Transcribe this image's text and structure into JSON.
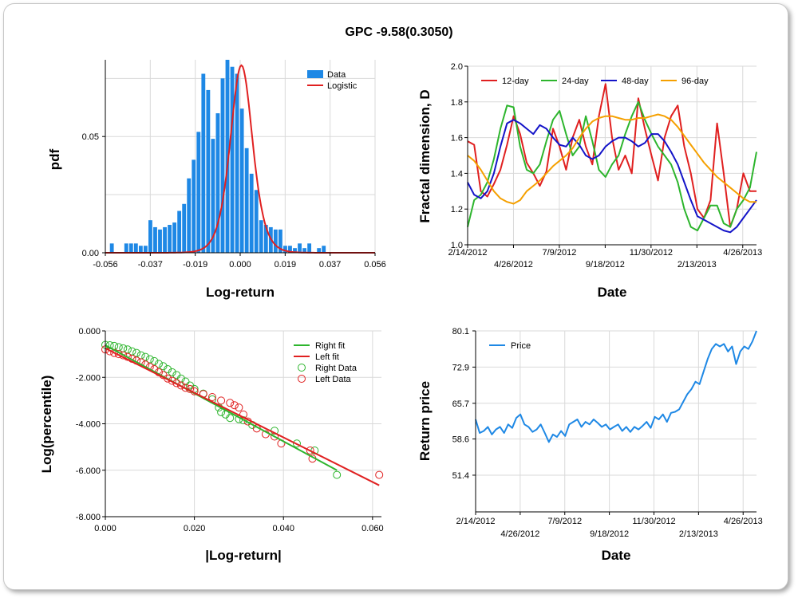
{
  "title": "GPC -9.58(0.3050)",
  "chart_data": [
    {
      "id": "histogram",
      "type": "bar",
      "xlabel": "Log-return",
      "ylabel": "pdf",
      "xlim": [
        -0.056,
        0.056
      ],
      "ylim": [
        0,
        0.083
      ],
      "xticks": [
        "-0.056",
        "-0.037",
        "-0.019",
        "0.000",
        "0.019",
        "0.037",
        "0.056"
      ],
      "yticks": [
        {
          "v": 0,
          "label": "0.00"
        },
        {
          "v": 0.05,
          "label": "0.05"
        }
      ],
      "legend": [
        {
          "name": "Data",
          "color": "#1e88e5"
        },
        {
          "name": "Logistic",
          "color": "#e02020"
        }
      ],
      "bins": {
        "start": -0.0543,
        "width": 0.002
      },
      "values": [
        0.004,
        0.0,
        0.0,
        0.004,
        0.004,
        0.004,
        0.003,
        0.003,
        0.014,
        0.011,
        0.01,
        0.011,
        0.012,
        0.013,
        0.018,
        0.021,
        0.032,
        0.04,
        0.052,
        0.077,
        0.07,
        0.049,
        0.06,
        0.075,
        0.083,
        0.08,
        0.077,
        0.062,
        0.045,
        0.034,
        0.027,
        0.014,
        0.012,
        0.011,
        0.01,
        0.01,
        0.003,
        0.003,
        0.002,
        0.004,
        0.002,
        0.004,
        0.0,
        0.002,
        0.003
      ],
      "fit_curve": {
        "mu": 0.0005,
        "s": 0.0031
      }
    },
    {
      "id": "fractal",
      "type": "line",
      "xlabel": "Date",
      "ylabel": "Fractal dimension, D",
      "ylim": [
        1.0,
        2.0
      ],
      "yticks": [
        "1.0",
        "1.2",
        "1.4",
        "1.6",
        "1.8",
        "2.0"
      ],
      "xticks_top": [
        "2/14/2012",
        "7/9/2012",
        "11/30/2012",
        "4/26/2013"
      ],
      "xticks_bottom": [
        "4/26/2012",
        "9/18/2012",
        "2/13/2013"
      ],
      "series": [
        {
          "name": "12-day",
          "color": "#e02020",
          "values": [
            1.58,
            1.56,
            1.3,
            1.27,
            1.34,
            1.42,
            1.56,
            1.72,
            1.62,
            1.46,
            1.4,
            1.33,
            1.41,
            1.65,
            1.55,
            1.42,
            1.6,
            1.7,
            1.55,
            1.45,
            1.72,
            1.9,
            1.6,
            1.42,
            1.5,
            1.4,
            1.82,
            1.65,
            1.5,
            1.36,
            1.6,
            1.72,
            1.78,
            1.55,
            1.4,
            1.2,
            1.15,
            1.25,
            1.68,
            1.4,
            1.1,
            1.2,
            1.4,
            1.3,
            1.3
          ]
        },
        {
          "name": "24-day",
          "color": "#2db52d",
          "values": [
            1.1,
            1.25,
            1.28,
            1.35,
            1.48,
            1.65,
            1.78,
            1.77,
            1.55,
            1.42,
            1.4,
            1.45,
            1.58,
            1.7,
            1.75,
            1.62,
            1.5,
            1.55,
            1.72,
            1.58,
            1.42,
            1.38,
            1.45,
            1.5,
            1.62,
            1.72,
            1.8,
            1.7,
            1.62,
            1.55,
            1.5,
            1.45,
            1.35,
            1.2,
            1.1,
            1.08,
            1.15,
            1.22,
            1.22,
            1.12,
            1.1,
            1.2,
            1.25,
            1.32,
            1.52
          ]
        },
        {
          "name": "48-day",
          "color": "#1414c8",
          "values": [
            1.35,
            1.28,
            1.26,
            1.3,
            1.4,
            1.55,
            1.68,
            1.7,
            1.68,
            1.65,
            1.62,
            1.67,
            1.65,
            1.6,
            1.56,
            1.55,
            1.6,
            1.56,
            1.5,
            1.48,
            1.5,
            1.55,
            1.58,
            1.6,
            1.6,
            1.58,
            1.55,
            1.57,
            1.62,
            1.62,
            1.58,
            1.52,
            1.45,
            1.35,
            1.25,
            1.16,
            1.14,
            1.12,
            1.1,
            1.08,
            1.07,
            1.1,
            1.15,
            1.2,
            1.25
          ]
        },
        {
          "name": "96-day",
          "color": "#f5a000",
          "values": [
            1.5,
            1.47,
            1.42,
            1.36,
            1.3,
            1.26,
            1.24,
            1.23,
            1.25,
            1.3,
            1.33,
            1.36,
            1.4,
            1.44,
            1.47,
            1.5,
            1.54,
            1.6,
            1.65,
            1.69,
            1.71,
            1.72,
            1.72,
            1.71,
            1.7,
            1.7,
            1.71,
            1.71,
            1.72,
            1.73,
            1.72,
            1.7,
            1.66,
            1.61,
            1.56,
            1.51,
            1.46,
            1.42,
            1.38,
            1.35,
            1.32,
            1.29,
            1.26,
            1.24,
            1.24
          ]
        }
      ]
    },
    {
      "id": "tail",
      "type": "scatter",
      "xlabel": "|Log-return|",
      "ylabel": "Log(percentile)",
      "xlim": [
        0,
        0.062
      ],
      "ylim": [
        -8.0,
        0.0
      ],
      "xticks": [
        {
          "v": 0,
          "label": "0.000"
        },
        {
          "v": 0.02,
          "label": "0.020"
        },
        {
          "v": 0.04,
          "label": "0.040"
        },
        {
          "v": 0.06,
          "label": "0.060"
        }
      ],
      "yticks": [
        {
          "v": 0,
          "label": "0.000"
        },
        {
          "v": -2,
          "label": "-2.000"
        },
        {
          "v": -4,
          "label": "-4.000"
        },
        {
          "v": -6,
          "label": "-6.000"
        },
        {
          "v": -8,
          "label": "-8.000"
        }
      ],
      "legend": [
        {
          "name": "Right fit",
          "color": "#2db52d",
          "kind": "line"
        },
        {
          "name": "Left fit",
          "color": "#e02020",
          "kind": "line"
        },
        {
          "name": "Right Data",
          "color": "#2db52d",
          "kind": "marker"
        },
        {
          "name": "Left Data",
          "color": "#e02020",
          "kind": "marker"
        }
      ],
      "right_fit": [
        [
          0,
          -0.62
        ],
        [
          0.052,
          -6.0
        ]
      ],
      "left_fit": [
        [
          0,
          -0.75
        ],
        [
          0.0615,
          -6.65
        ]
      ],
      "right_points": [
        [
          0.0,
          -0.6
        ],
        [
          0.001,
          -0.62
        ],
        [
          0.002,
          -0.65
        ],
        [
          0.003,
          -0.7
        ],
        [
          0.004,
          -0.75
        ],
        [
          0.005,
          -0.8
        ],
        [
          0.006,
          -0.88
        ],
        [
          0.007,
          -0.95
        ],
        [
          0.008,
          -1.05
        ],
        [
          0.009,
          -1.12
        ],
        [
          0.01,
          -1.22
        ],
        [
          0.011,
          -1.3
        ],
        [
          0.012,
          -1.42
        ],
        [
          0.013,
          -1.52
        ],
        [
          0.014,
          -1.65
        ],
        [
          0.015,
          -1.78
        ],
        [
          0.016,
          -1.9
        ],
        [
          0.017,
          -2.05
        ],
        [
          0.018,
          -2.18
        ],
        [
          0.019,
          -2.35
        ],
        [
          0.02,
          -2.5
        ],
        [
          0.022,
          -2.7
        ],
        [
          0.024,
          -2.95
        ],
        [
          0.0255,
          -3.3
        ],
        [
          0.026,
          -3.5
        ],
        [
          0.027,
          -3.6
        ],
        [
          0.028,
          -3.75
        ],
        [
          0.03,
          -3.8
        ],
        [
          0.031,
          -3.85
        ],
        [
          0.033,
          -4.05
        ],
        [
          0.038,
          -4.3
        ],
        [
          0.043,
          -4.85
        ],
        [
          0.047,
          -5.15
        ],
        [
          0.052,
          -6.2
        ]
      ],
      "left_points": [
        [
          0.0,
          -0.8
        ],
        [
          0.001,
          -0.88
        ],
        [
          0.002,
          -0.95
        ],
        [
          0.003,
          -1.0
        ],
        [
          0.004,
          -1.05
        ],
        [
          0.005,
          -1.12
        ],
        [
          0.006,
          -1.2
        ],
        [
          0.007,
          -1.28
        ],
        [
          0.008,
          -1.35
        ],
        [
          0.009,
          -1.45
        ],
        [
          0.01,
          -1.55
        ],
        [
          0.011,
          -1.65
        ],
        [
          0.012,
          -1.78
        ],
        [
          0.013,
          -1.9
        ],
        [
          0.014,
          -2.05
        ],
        [
          0.015,
          -2.15
        ],
        [
          0.016,
          -2.25
        ],
        [
          0.017,
          -2.35
        ],
        [
          0.018,
          -2.45
        ],
        [
          0.019,
          -2.5
        ],
        [
          0.02,
          -2.6
        ],
        [
          0.022,
          -2.72
        ],
        [
          0.024,
          -2.85
        ],
        [
          0.026,
          -3.0
        ],
        [
          0.028,
          -3.1
        ],
        [
          0.029,
          -3.2
        ],
        [
          0.03,
          -3.3
        ],
        [
          0.031,
          -3.6
        ],
        [
          0.032,
          -3.9
        ],
        [
          0.034,
          -4.2
        ],
        [
          0.036,
          -4.45
        ],
        [
          0.038,
          -4.55
        ],
        [
          0.0395,
          -4.85
        ],
        [
          0.046,
          -5.15
        ],
        [
          0.0465,
          -5.5
        ],
        [
          0.0615,
          -6.2
        ]
      ]
    },
    {
      "id": "price",
      "type": "line",
      "xlabel": "Date",
      "ylabel": "Return price",
      "ylim": [
        44.1,
        80.1
      ],
      "yticks": [
        {
          "v": 51.4,
          "label": "51.4"
        },
        {
          "v": 58.6,
          "label": "58.6"
        },
        {
          "v": 65.7,
          "label": "65.7"
        },
        {
          "v": 72.9,
          "label": "72.9"
        },
        {
          "v": 80.1,
          "label": "80.1"
        }
      ],
      "xticks_top": [
        "2/14/2012",
        "7/9/2012",
        "11/30/2012",
        "4/26/2013"
      ],
      "xticks_bottom": [
        "4/26/2012",
        "9/18/2012",
        "2/13/2013"
      ],
      "series": [
        {
          "name": "Price",
          "color": "#1e88e5",
          "values": [
            62.5,
            59.8,
            60.2,
            61.0,
            59.5,
            60.5,
            61.0,
            59.8,
            61.5,
            60.8,
            62.8,
            63.5,
            61.5,
            61.0,
            60.0,
            60.5,
            61.5,
            59.8,
            58.0,
            59.5,
            59.0,
            60.2,
            59.2,
            61.5,
            62.0,
            62.5,
            61.0,
            62.0,
            61.5,
            62.5,
            61.8,
            61.0,
            61.5,
            60.5,
            61.0,
            61.5,
            60.2,
            61.0,
            60.0,
            61.0,
            60.5,
            61.2,
            62.0,
            60.8,
            63.0,
            62.5,
            63.5,
            62.0,
            63.8,
            64.0,
            64.5,
            66.0,
            67.5,
            68.5,
            70.0,
            69.5,
            72.0,
            74.5,
            76.5,
            77.5,
            77.0,
            77.5,
            76.0,
            77.0,
            73.5,
            76.0,
            77.0,
            76.5,
            78.0,
            80.1
          ]
        }
      ]
    }
  ]
}
